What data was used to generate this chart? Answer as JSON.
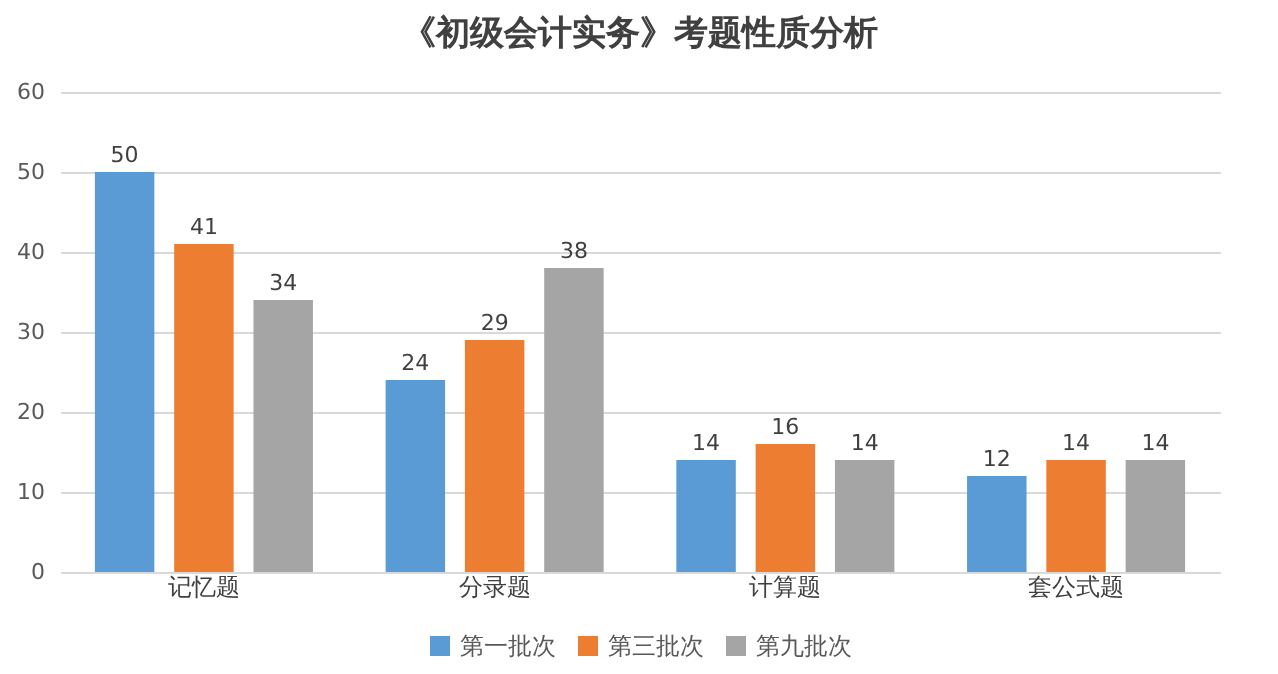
{
  "chart_data": {
    "type": "bar",
    "title": "《初级会计实务》考题性质分析",
    "categories": [
      "记忆题",
      "分录题",
      "计算题",
      "套公式题"
    ],
    "series": [
      {
        "name": "第一批次",
        "color": "#5b9bd5",
        "values": [
          50,
          24,
          14,
          12
        ]
      },
      {
        "name": "第三批次",
        "color": "#ed7d31",
        "values": [
          41,
          29,
          16,
          14
        ]
      },
      {
        "name": "第九批次",
        "color": "#a5a5a5",
        "values": [
          34,
          38,
          14,
          14
        ]
      }
    ],
    "ylim": [
      0,
      60
    ],
    "yticks": [
      0,
      10,
      20,
      30,
      40,
      50,
      60
    ],
    "grid": "y",
    "legend": "bottom",
    "data_labels": true
  }
}
